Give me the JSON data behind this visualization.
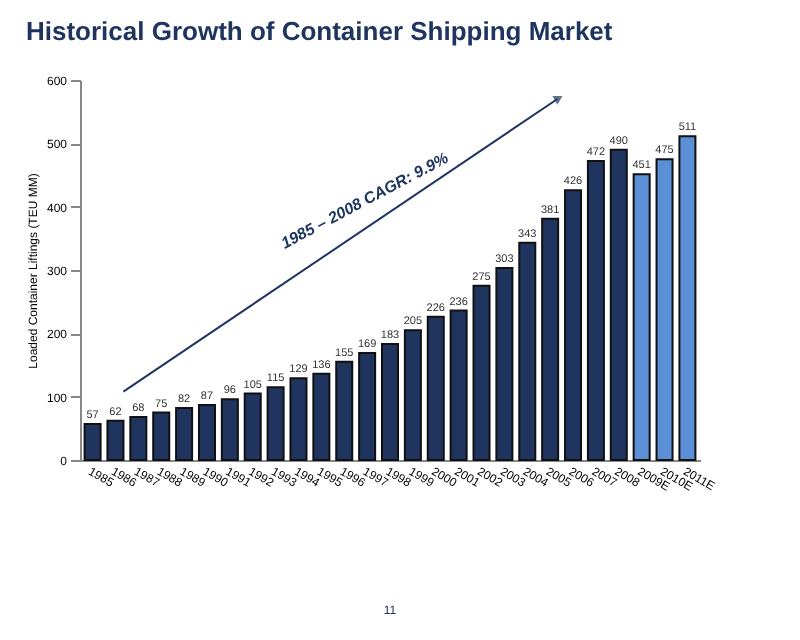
{
  "chart_data": {
    "type": "bar",
    "title": "Historical Growth of Container Shipping Market",
    "ylabel": "Loaded Container Liftings (TEU MM)",
    "categories": [
      "1985",
      "1986",
      "1987",
      "1988",
      "1989",
      "1990",
      "1991",
      "1992",
      "1993",
      "1994",
      "1995",
      "1996",
      "1997",
      "1998",
      "1999",
      "2000",
      "2001",
      "2002",
      "2003",
      "2004",
      "2005",
      "2006",
      "2007",
      "2008",
      "2009E",
      "2010E",
      "2011E"
    ],
    "values": [
      57,
      62,
      68,
      75,
      82,
      87,
      96,
      105,
      115,
      129,
      136,
      155,
      169,
      183,
      205,
      226,
      236,
      275,
      303,
      343,
      381,
      426,
      472,
      490,
      451,
      475,
      511
    ],
    "colors": [
      "#1f3560",
      "#1f3560",
      "#1f3560",
      "#1f3560",
      "#1f3560",
      "#1f3560",
      "#1f3560",
      "#1f3560",
      "#1f3560",
      "#1f3560",
      "#1f3560",
      "#1f3560",
      "#1f3560",
      "#1f3560",
      "#1f3560",
      "#1f3560",
      "#1f3560",
      "#1f3560",
      "#1f3560",
      "#1f3560",
      "#1f3560",
      "#1f3560",
      "#1f3560",
      "#1f3560",
      "#5b8fd6",
      "#5b8fd6",
      "#5b8fd6"
    ],
    "ylim": [
      0,
      600
    ],
    "yticks": [
      0,
      100,
      200,
      300,
      400,
      500,
      600
    ],
    "data_labels": true,
    "grid": false,
    "annotations": [
      "1985 – 2008 CAGR:  9.9%",
      "11"
    ]
  }
}
